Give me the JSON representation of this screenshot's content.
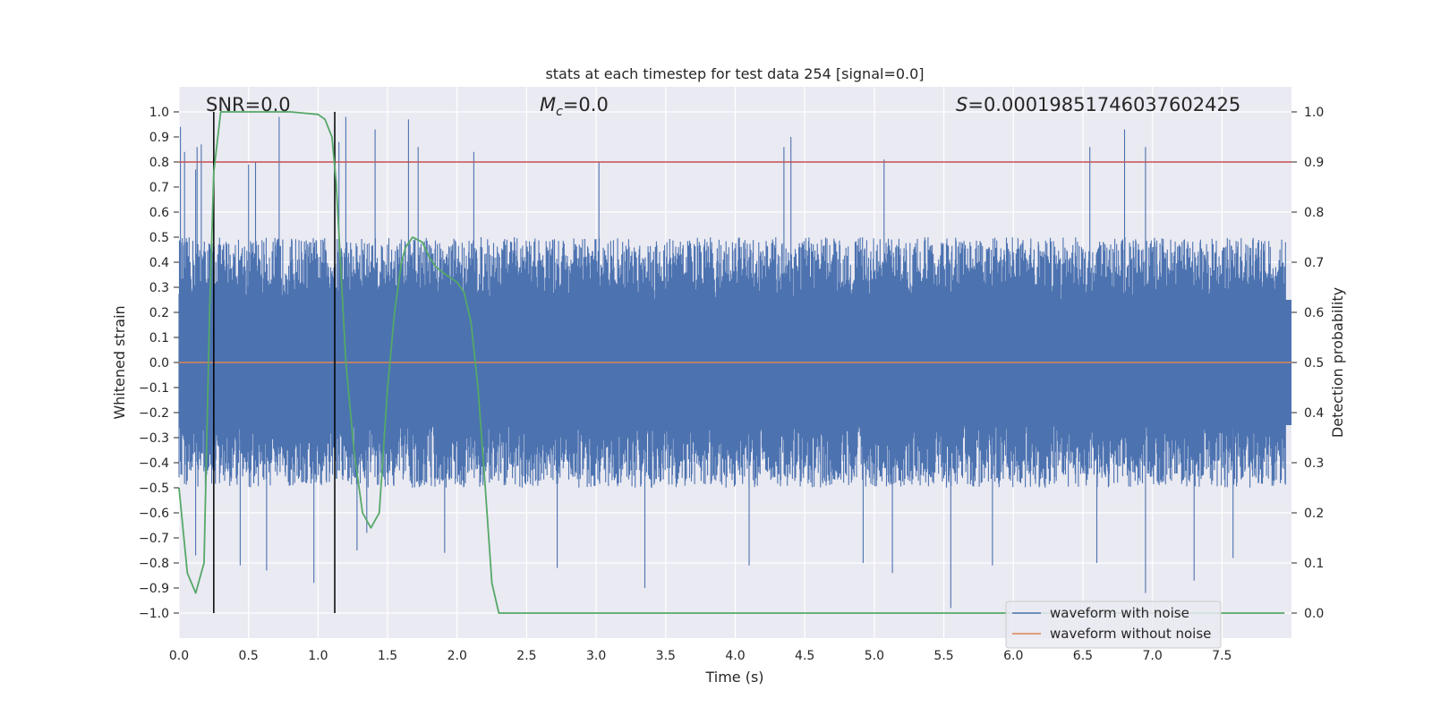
{
  "chart_data": {
    "type": "line",
    "title": "stats at each timestep for test data 254 [signal=0.0]",
    "xlabel": "Time (s)",
    "ylabel": "Whitened strain",
    "y2label": "Detection probability",
    "xlim": [
      0.0,
      8.0
    ],
    "ylim": [
      -1.1,
      1.1
    ],
    "y2lim": [
      -0.05,
      1.05
    ],
    "xticks": [
      "0.0",
      "0.5",
      "1.0",
      "1.5",
      "2.0",
      "2.5",
      "3.0",
      "3.5",
      "4.0",
      "4.5",
      "5.0",
      "5.5",
      "6.0",
      "6.5",
      "7.0",
      "7.5"
    ],
    "yticks": [
      "1.0",
      "0.9",
      "0.8",
      "0.7",
      "0.6",
      "0.5",
      "0.4",
      "0.3",
      "0.2",
      "0.1",
      "0.0",
      "−0.1",
      "−0.2",
      "−0.3",
      "−0.4",
      "−0.5",
      "−0.6",
      "−0.7",
      "−0.8",
      "−0.9",
      "−1.0"
    ],
    "y2ticks": [
      "1.0",
      "0.9",
      "0.8",
      "0.7",
      "0.6",
      "0.5",
      "0.4",
      "0.3",
      "0.2",
      "0.1",
      "0.0"
    ],
    "grid": true,
    "legend_placement": "lower-right",
    "annotations": {
      "snr": "SNR=0.0",
      "mc_symbol": "M",
      "mc_sub": "c",
      "mc_value": "=0.0",
      "s_symbol": "S",
      "s_value": "=0.00019851746037602425"
    },
    "series": [
      {
        "name": "waveform with noise",
        "color": "#4c72b0",
        "axis": "left",
        "envelope": true,
        "typical_upper": 0.5,
        "typical_lower": -0.5,
        "spikes": [
          [
            0.01,
            0.94
          ],
          [
            0.04,
            0.84
          ],
          [
            0.12,
            0.77
          ],
          [
            0.13,
            0.86
          ],
          [
            0.16,
            0.87
          ],
          [
            0.5,
            0.79
          ],
          [
            0.55,
            0.8
          ],
          [
            0.72,
            0.98
          ],
          [
            1.12,
            0.95
          ],
          [
            1.15,
            0.88
          ],
          [
            1.2,
            0.98
          ],
          [
            1.41,
            0.93
          ],
          [
            1.65,
            0.97
          ],
          [
            1.72,
            0.86
          ],
          [
            2.12,
            0.84
          ],
          [
            3.02,
            0.8
          ],
          [
            4.35,
            0.86
          ],
          [
            4.4,
            0.9
          ],
          [
            5.07,
            0.81
          ],
          [
            6.55,
            0.86
          ],
          [
            6.8,
            0.93
          ],
          [
            6.95,
            0.86
          ],
          [
            0.12,
            -0.77
          ],
          [
            0.44,
            -0.81
          ],
          [
            0.63,
            -0.83
          ],
          [
            0.97,
            -0.88
          ],
          [
            1.28,
            -0.75
          ],
          [
            1.35,
            -0.68
          ],
          [
            1.91,
            -0.76
          ],
          [
            2.72,
            -0.82
          ],
          [
            3.35,
            -0.9
          ],
          [
            4.1,
            -0.81
          ],
          [
            4.92,
            -0.8
          ],
          [
            5.13,
            -0.84
          ],
          [
            5.55,
            -0.98
          ],
          [
            5.85,
            -0.81
          ],
          [
            6.6,
            -0.8
          ],
          [
            6.95,
            -0.92
          ],
          [
            7.3,
            -0.87
          ],
          [
            7.58,
            -0.78
          ]
        ]
      },
      {
        "name": "waveform without noise",
        "color": "#dd8452",
        "axis": "left",
        "x": [
          0.0,
          8.0
        ],
        "y": [
          0.0,
          0.0
        ]
      },
      {
        "name": "",
        "color": "#55a868",
        "axis": "right",
        "x": [
          0.0,
          0.06,
          0.12,
          0.18,
          0.22,
          0.25,
          0.3,
          0.4,
          0.6,
          0.8,
          1.0,
          1.05,
          1.1,
          1.13,
          1.2,
          1.26,
          1.32,
          1.38,
          1.44,
          1.5,
          1.55,
          1.6,
          1.63,
          1.68,
          1.75,
          1.8,
          1.85,
          1.92,
          2.0,
          2.05,
          2.1,
          2.15,
          2.2,
          2.25,
          2.3,
          2.35,
          2.5,
          3.0,
          4.0,
          5.0,
          6.0,
          7.0,
          7.95
        ],
        "y": [
          0.25,
          0.08,
          0.04,
          0.1,
          0.6,
          0.88,
          1.0,
          1.0,
          1.0,
          1.0,
          0.995,
          0.985,
          0.95,
          0.86,
          0.5,
          0.32,
          0.2,
          0.17,
          0.2,
          0.45,
          0.6,
          0.7,
          0.73,
          0.75,
          0.74,
          0.71,
          0.69,
          0.675,
          0.66,
          0.64,
          0.58,
          0.45,
          0.26,
          0.06,
          0.0,
          0.0,
          0.0,
          0.0,
          0.0,
          0.0,
          0.0,
          0.0,
          0.0
        ]
      }
    ],
    "hlines_right": [
      {
        "y": 0.9,
        "color": "#c44e52"
      }
    ],
    "vlines": [
      {
        "x": 0.25,
        "color": "#000000",
        "from": -1.0,
        "to": 1.0
      },
      {
        "x": 1.12,
        "color": "#000000",
        "from": -1.0,
        "to": 1.0
      }
    ]
  }
}
